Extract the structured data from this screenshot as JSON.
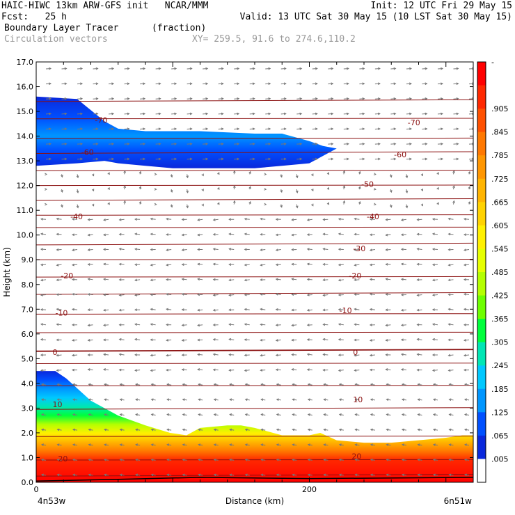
{
  "header": {
    "line1_left": "HAIC-HIWC 13km ARW-GFS init   NCAR/MMM",
    "line1_right": "Init: 12 UTC Fri 29 May 15",
    "line2_left": "Fcst:   25 h",
    "line2_right": "Valid: 13 UTC Sat 30 May 15 (10 LST Sat 30 May 15)",
    "field_name": "Boundary Layer Tracer",
    "field_units": "(fraction)",
    "vector_name": "Circulation vectors",
    "cross_section": "XY= 259.5, 91.6 to 274.6,110.2"
  },
  "chart_data": {
    "type": "heatmap",
    "xlabel": "Distance (km)",
    "ylabel": "Height (km)",
    "xlim": [
      0,
      320
    ],
    "ylim": [
      0.0,
      17.0
    ],
    "x_ticks": [
      0,
      200
    ],
    "y_ticks": [
      "0.0",
      "1.0",
      "2.0",
      "3.0",
      "4.0",
      "5.0",
      "6.0",
      "7.0",
      "8.0",
      "9.0",
      "10.0",
      "11.0",
      "12.0",
      "13.0",
      "14.0",
      "15.0",
      "16.0",
      "17.0"
    ],
    "left_endpoint": "4n53w",
    "right_endpoint": "6n51w",
    "colorbar": {
      "labels": [
        "-",
        ".905",
        ".845",
        ".785",
        ".725",
        ".665",
        ".605",
        ".545",
        ".485",
        ".425",
        ".365",
        ".305",
        ".245",
        ".185",
        ".125",
        ".065",
        ".005"
      ],
      "colors": [
        "#ff0000",
        "#ff2800",
        "#ff5000",
        "#ff7800",
        "#ff9600",
        "#ffb400",
        "#ffd200",
        "#fff000",
        "#e6ff00",
        "#b4ff00",
        "#6eff00",
        "#00ff3c",
        "#00e6b4",
        "#00c8ff",
        "#0096ff",
        "#0050ff",
        "#0a28dc",
        "#ffffff"
      ]
    },
    "contour_labels": [
      {
        "text": "-70",
        "x": 43,
        "y": 14.6
      },
      {
        "text": "-70",
        "x": 272,
        "y": 14.5
      },
      {
        "text": "-60",
        "x": 33,
        "y": 13.3
      },
      {
        "text": "-60",
        "x": 262,
        "y": 13.2
      },
      {
        "text": "-50",
        "x": 238,
        "y": 12.0
      },
      {
        "text": "-40",
        "x": 25,
        "y": 10.7
      },
      {
        "text": "-40",
        "x": 242,
        "y": 10.7
      },
      {
        "text": "-30",
        "x": 232,
        "y": 9.4
      },
      {
        "text": "-20",
        "x": 18,
        "y": 8.3
      },
      {
        "text": "-20",
        "x": 229,
        "y": 8.3
      },
      {
        "text": "-10",
        "x": 14,
        "y": 6.8
      },
      {
        "text": "-10",
        "x": 222,
        "y": 6.9
      },
      {
        "text": "0",
        "x": 12,
        "y": 5.2
      },
      {
        "text": "0",
        "x": 232,
        "y": 5.2
      },
      {
        "text": "10",
        "x": 12,
        "y": 3.1
      },
      {
        "text": "10",
        "x": 232,
        "y": 3.3
      },
      {
        "text": "20",
        "x": 16,
        "y": 0.9
      },
      {
        "text": "20",
        "x": 231,
        "y": 1.0
      }
    ],
    "upper_layer": {
      "x": [
        0,
        30,
        50,
        60,
        80,
        100,
        120,
        160,
        180,
        200,
        210,
        220
      ],
      "top": [
        15.6,
        15.5,
        14.6,
        14.3,
        14.2,
        14.2,
        14.2,
        14.1,
        14.1,
        13.8,
        13.6,
        13.5
      ],
      "bottom": [
        12.8,
        12.9,
        13.0,
        12.9,
        12.8,
        12.7,
        12.7,
        12.7,
        12.8,
        12.9,
        13.2,
        13.5
      ]
    },
    "boundary_layer": {
      "x": [
        0,
        14,
        22,
        40,
        60,
        80,
        98,
        110,
        120,
        140,
        150,
        160,
        180,
        200,
        208,
        220,
        240,
        260,
        280,
        300,
        312,
        320
      ],
      "top": [
        4.5,
        4.5,
        4.2,
        3.3,
        2.7,
        2.3,
        2.0,
        1.9,
        2.2,
        2.3,
        2.3,
        2.2,
        1.9,
        1.9,
        2.0,
        1.7,
        1.6,
        1.6,
        1.7,
        1.8,
        1.9,
        1.9
      ]
    }
  }
}
